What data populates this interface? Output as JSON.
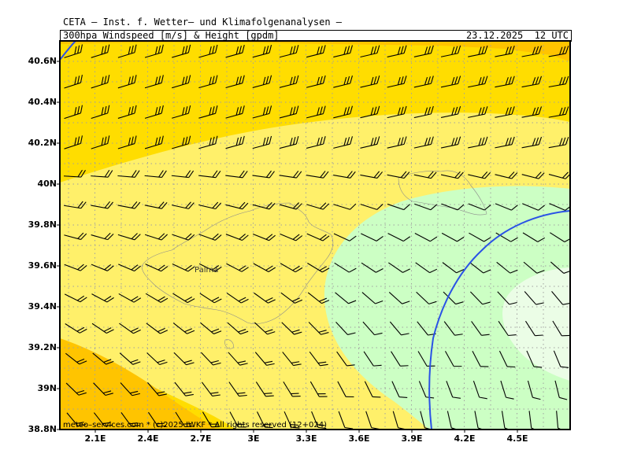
{
  "header": {
    "agency": "CETA – Inst. f. Wetter– und Klimafolgenanalysen –",
    "parameter": "300hpa_Windspeed_[m/s]_&_Height_[gpdm]",
    "datetime": "23.12.2025  12 UTC"
  },
  "map": {
    "lat_labels": [
      "40.6N",
      "40.4N",
      "40.2N",
      "40N",
      "39.8N",
      "39.6N",
      "39.4N",
      "39.2N",
      "39N",
      "38.8N"
    ],
    "lon_labels": [
      "2.1E",
      "2.4E",
      "2.7E",
      "3E",
      "3.3E",
      "3.6E",
      "3.9E",
      "4.2E",
      "4.5E"
    ],
    "lat_range": [
      38.8,
      40.7
    ],
    "lon_range": [
      1.9,
      4.9
    ],
    "city_label": "Palma",
    "copyright": "meteo–services.com * (c)2025 IWKF * All rights reserved (12+024)"
  },
  "colors": {
    "orange": "#ffc400",
    "gold": "#ffdd00",
    "light_yellow": "#fff06a",
    "light_green": "#ccffc4",
    "pale_green": "#ebfde6",
    "contour": "#2a52e6",
    "grid": "#a0a0a0"
  }
}
